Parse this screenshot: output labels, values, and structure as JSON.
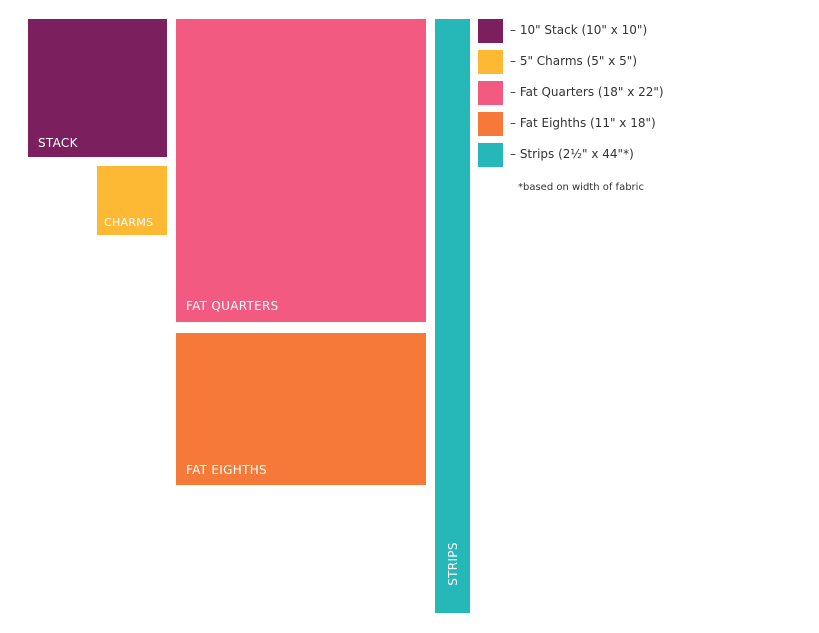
{
  "colors": {
    "stack": "#7b1f5e",
    "charms": "#fdb933",
    "fat_quarters": "#f25a81",
    "fat_eighths": "#f7793a",
    "strips": "#26b8b8"
  },
  "blocks": {
    "stack": "STACK",
    "charms": "CHARMS",
    "fat_quarters": "FAT QUARTERS",
    "fat_eighths": "FAT EIGHTHS",
    "strips": "STRIPS"
  },
  "legend": {
    "items": [
      {
        "key": "stack",
        "label": "– 10\" Stack (10\" x 10\")"
      },
      {
        "key": "charms",
        "label": "– 5\" Charms (5\" x 5\")"
      },
      {
        "key": "fat_quarters",
        "label": "– Fat Quarters (18\" x 22\")"
      },
      {
        "key": "fat_eighths",
        "label": "– Fat Eighths (11\" x 18\")"
      },
      {
        "key": "strips",
        "label": "– Strips (2½\" x 44\"*)"
      }
    ],
    "note": "*based on width of fabric"
  }
}
